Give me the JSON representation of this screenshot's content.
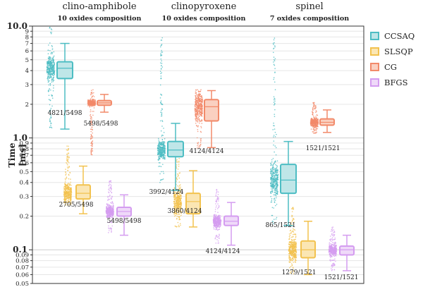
{
  "chart_data": {
    "type": "box",
    "ylabel": "Time [ms]",
    "yscale": "log",
    "ylim": [
      0.05,
      10
    ],
    "ytick_labels": [
      {
        "value": 10,
        "label": "10.0",
        "major": true
      },
      {
        "value": 9,
        "label": "9"
      },
      {
        "value": 8,
        "label": "8"
      },
      {
        "value": 7,
        "label": "7"
      },
      {
        "value": 6,
        "label": "6"
      },
      {
        "value": 5,
        "label": "5"
      },
      {
        "value": 4,
        "label": "4"
      },
      {
        "value": 3,
        "label": "3"
      },
      {
        "value": 2,
        "label": "2"
      },
      {
        "value": 1,
        "label": "1.0",
        "major": true
      },
      {
        "value": 0.9,
        "label": "0.9"
      },
      {
        "value": 0.8,
        "label": "0.8"
      },
      {
        "value": 0.7,
        "label": "0.7"
      },
      {
        "value": 0.6,
        "label": "0.6"
      },
      {
        "value": 0.5,
        "label": "0.5"
      },
      {
        "value": 0.4,
        "label": "0.4"
      },
      {
        "value": 0.3,
        "label": "0.3"
      },
      {
        "value": 0.2,
        "label": "0.2"
      },
      {
        "value": 0.1,
        "label": "0.1",
        "major": true
      },
      {
        "value": 0.09,
        "label": "0.09"
      },
      {
        "value": 0.08,
        "label": "0.08"
      },
      {
        "value": 0.07,
        "label": "0.07"
      },
      {
        "value": 0.06,
        "label": "0.06"
      },
      {
        "value": 0.05,
        "label": "0.05"
      }
    ],
    "panels": [
      {
        "title": "clino-amphibole",
        "subtitle": "10 oxides composition"
      },
      {
        "title": "clinopyroxene",
        "subtitle": "10 oxides composition"
      },
      {
        "title": "spinel",
        "subtitle": "7 oxides composition"
      }
    ],
    "series": [
      {
        "name": "CCSAQ",
        "color": "#4dbdc3",
        "fill": "#bfe6e8"
      },
      {
        "name": "SLSQP",
        "color": "#f2c24f",
        "fill": "#fbe6b3"
      },
      {
        "name": "CG",
        "color": "#f28a6a",
        "fill": "#fad0c0"
      },
      {
        "name": "BFGS",
        "color": "#d49cf0",
        "fill": "#efd9f9"
      }
    ],
    "boxes": [
      {
        "panel": 0,
        "series": 0,
        "whislo": 1.2,
        "q1": 3.4,
        "med": 4.2,
        "q3": 4.8,
        "whishi": 7.0,
        "scatter_min": 1.2,
        "scatter_max": 11,
        "label": "4821/5498"
      },
      {
        "panel": 0,
        "series": 1,
        "whislo": 0.21,
        "q1": 0.285,
        "med": 0.32,
        "q3": 0.38,
        "whishi": 0.56,
        "scatter_min": 0.25,
        "scatter_max": 0.85,
        "label": "2705/5498"
      },
      {
        "panel": 0,
        "series": 2,
        "whislo": 1.7,
        "q1": 1.96,
        "med": 2.06,
        "q3": 2.16,
        "whishi": 2.45,
        "scatter_min": 0.7,
        "scatter_max": 2.7,
        "label": "5498/5498"
      },
      {
        "panel": 0,
        "series": 3,
        "whislo": 0.135,
        "q1": 0.2,
        "med": 0.22,
        "q3": 0.24,
        "whishi": 0.31,
        "scatter_min": 0.14,
        "scatter_max": 0.42,
        "label": "5498/5498"
      },
      {
        "panel": 1,
        "series": 0,
        "whislo": 0.34,
        "q1": 0.68,
        "med": 0.78,
        "q3": 0.93,
        "whishi": 1.35,
        "scatter_min": 0.4,
        "scatter_max": 8,
        "label": "3992/4124"
      },
      {
        "panel": 1,
        "series": 1,
        "whislo": 0.16,
        "q1": 0.21,
        "med": 0.27,
        "q3": 0.32,
        "whishi": 0.51,
        "scatter_min": 0.16,
        "scatter_max": 0.7,
        "label": "3860/4124"
      },
      {
        "panel": 1,
        "series": 2,
        "whislo": 0.82,
        "q1": 1.42,
        "med": 1.9,
        "q3": 2.2,
        "whishi": 2.65,
        "scatter_min": 0.8,
        "scatter_max": 2.7,
        "label": "4124/4124"
      },
      {
        "panel": 1,
        "series": 3,
        "whislo": 0.11,
        "q1": 0.165,
        "med": 0.18,
        "q3": 0.2,
        "whishi": 0.265,
        "scatter_min": 0.11,
        "scatter_max": 0.36,
        "label": "4124/4124"
      },
      {
        "panel": 2,
        "series": 0,
        "whislo": 0.165,
        "q1": 0.32,
        "med": 0.42,
        "q3": 0.58,
        "whishi": 0.93,
        "scatter_min": 0.17,
        "scatter_max": 8,
        "label": "865/1521"
      },
      {
        "panel": 2,
        "series": 1,
        "whislo": 0.06,
        "q1": 0.085,
        "med": 0.1,
        "q3": 0.12,
        "whishi": 0.18,
        "scatter_min": 0.06,
        "scatter_max": 0.24,
        "label": "1279/1521"
      },
      {
        "panel": 2,
        "series": 2,
        "whislo": 1.12,
        "q1": 1.3,
        "med": 1.38,
        "q3": 1.48,
        "whishi": 1.78,
        "scatter_min": 1.1,
        "scatter_max": 2.1,
        "label": "1521/1521"
      },
      {
        "panel": 2,
        "series": 3,
        "whislo": 0.065,
        "q1": 0.09,
        "med": 0.1,
        "q3": 0.108,
        "whishi": 0.135,
        "scatter_min": 0.065,
        "scatter_max": 0.16,
        "label": "1521/1521"
      }
    ]
  }
}
